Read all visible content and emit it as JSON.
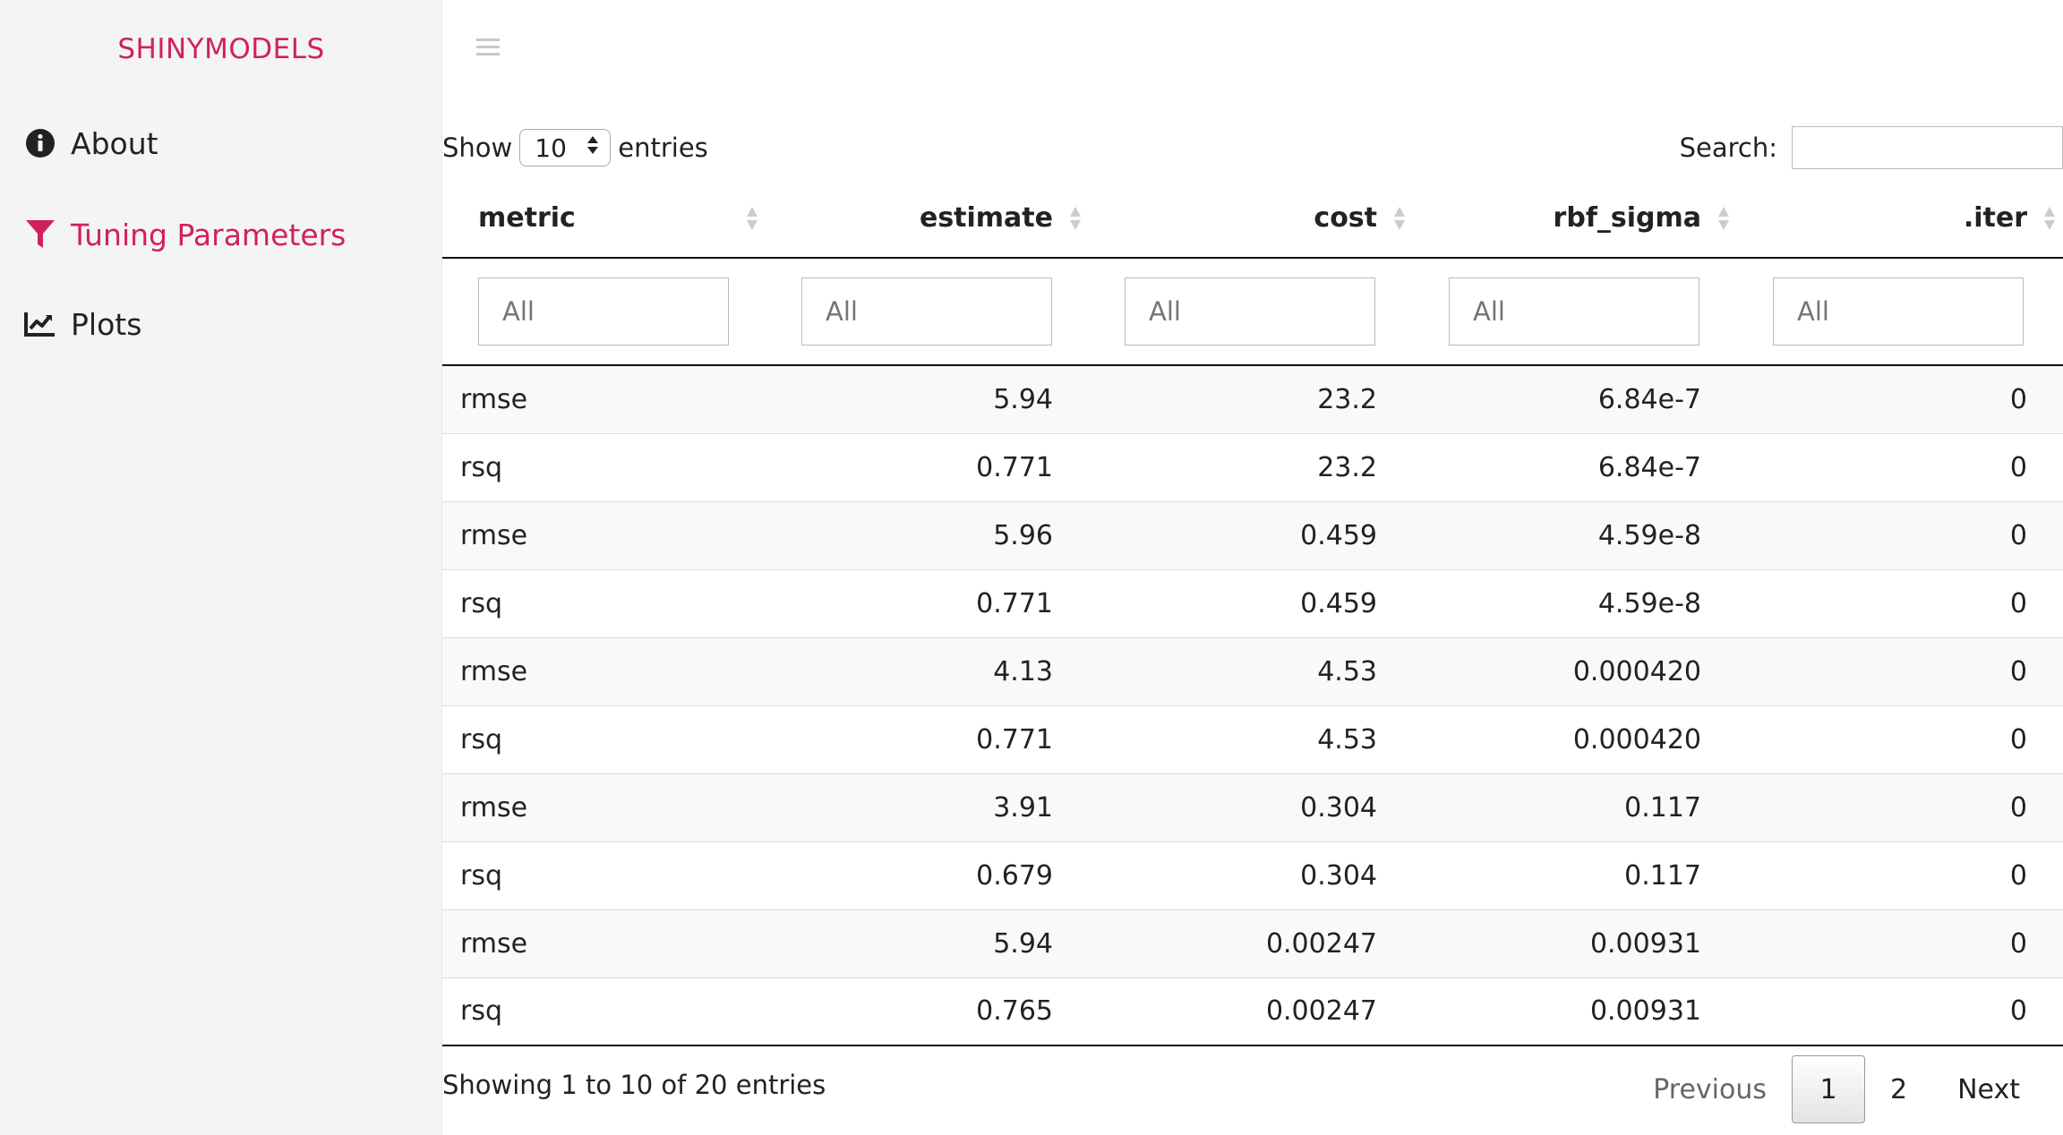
{
  "brand": "SHINYMODELS",
  "sidebar": {
    "items": [
      {
        "label": "About",
        "icon": "info-circle-icon",
        "active": false
      },
      {
        "label": "Tuning Parameters",
        "icon": "filter-icon",
        "active": true
      },
      {
        "label": "Plots",
        "icon": "line-chart-icon",
        "active": false
      }
    ]
  },
  "colors": {
    "accent": "#d0215f",
    "sidebar_bg": "#f4f4f4",
    "stripe": "#f9f9f9"
  },
  "table_controls": {
    "show_label": "Show",
    "page_length": "10",
    "entries_label": "entries",
    "search_label": "Search:",
    "search_value": ""
  },
  "table": {
    "columns": [
      "metric",
      "estimate",
      "cost",
      "rbf_sigma",
      ".iter"
    ],
    "filter_placeholder": "All",
    "rows": [
      [
        "rmse",
        "5.94",
        "23.2",
        "6.84e-7",
        "0"
      ],
      [
        "rsq",
        "0.771",
        "23.2",
        "6.84e-7",
        "0"
      ],
      [
        "rmse",
        "5.96",
        "0.459",
        "4.59e-8",
        "0"
      ],
      [
        "rsq",
        "0.771",
        "0.459",
        "4.59e-8",
        "0"
      ],
      [
        "rmse",
        "4.13",
        "4.53",
        "0.000420",
        "0"
      ],
      [
        "rsq",
        "0.771",
        "4.53",
        "0.000420",
        "0"
      ],
      [
        "rmse",
        "3.91",
        "0.304",
        "0.117",
        "0"
      ],
      [
        "rsq",
        "0.679",
        "0.304",
        "0.117",
        "0"
      ],
      [
        "rmse",
        "5.94",
        "0.00247",
        "0.00931",
        "0"
      ],
      [
        "rsq",
        "0.765",
        "0.00247",
        "0.00931",
        "0"
      ]
    ]
  },
  "footer": {
    "info": "Showing 1 to 10 of 20 entries",
    "previous": "Previous",
    "pages": [
      "1",
      "2"
    ],
    "current_page": "1",
    "next": "Next"
  }
}
